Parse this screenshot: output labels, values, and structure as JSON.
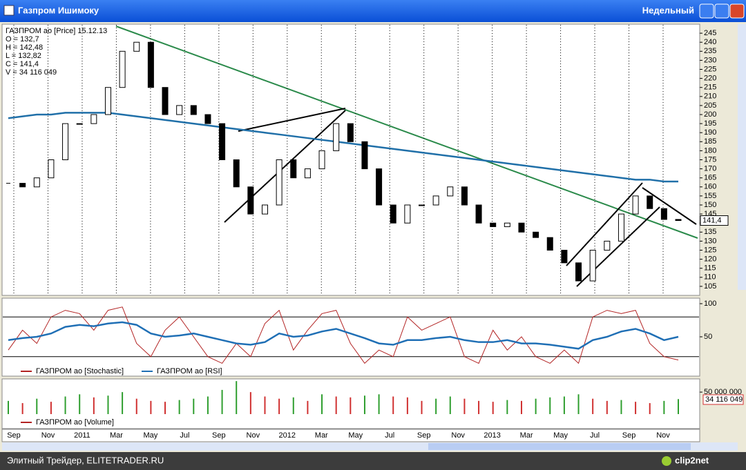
{
  "window": {
    "title": "Газпром Ишимоку",
    "period": "Недельный"
  },
  "x_labels": [
    "Sep",
    "Nov",
    "2011",
    "Mar",
    "May",
    "Jul",
    "Sep",
    "Nov",
    "2012",
    "Mar",
    "May",
    "Jul",
    "Sep",
    "Nov",
    "2013",
    "Mar",
    "May",
    "Jul",
    "Sep",
    "Nov"
  ],
  "footer": {
    "text": "Элитный Трейдер, ELITETRADER.RU",
    "logo": "clip2net"
  },
  "chart_data": [
    {
      "type": "candlestick",
      "info": [
        "ГАЗПРОМ ао [Price] 15.12.13",
        "O = 132,7",
        "H = 142,48",
        "L = 132,82",
        "C = 141,4",
        "V = 34 116 049"
      ],
      "last_label": "141,4",
      "close": [
        162,
        160,
        165,
        175,
        195,
        195,
        200,
        215,
        235,
        240,
        215,
        200,
        205,
        200,
        195,
        175,
        160,
        145,
        150,
        175,
        165,
        170,
        180,
        195,
        185,
        170,
        150,
        140,
        150,
        150,
        155,
        160,
        150,
        140,
        138,
        140,
        135,
        132,
        125,
        118,
        108,
        125,
        130,
        145,
        155,
        148,
        142,
        141.4
      ],
      "ma": [
        198,
        199,
        200,
        200,
        201,
        201,
        201,
        201,
        200,
        199,
        198,
        197,
        196,
        195,
        194,
        193,
        192,
        191,
        190,
        189,
        188,
        187,
        186,
        185,
        184,
        183,
        182,
        181,
        180,
        179,
        178,
        177,
        176,
        175,
        174,
        173,
        172,
        171,
        170,
        169,
        168,
        167,
        166,
        165,
        164,
        164,
        163,
        163
      ],
      "ma_color": "#1f6fa8",
      "ylim": [
        100,
        250
      ],
      "yticks": [
        105,
        110,
        115,
        120,
        125,
        130,
        135,
        140,
        145,
        150,
        155,
        160,
        165,
        170,
        175,
        180,
        185,
        190,
        195,
        200,
        205,
        210,
        215,
        220,
        225,
        230,
        235,
        240,
        245
      ]
    },
    {
      "type": "line",
      "legend": [
        "ГАЗПРОМ ао [Stochastic]",
        "ГАЗПРОМ ао [RSI]"
      ],
      "series": [
        {
          "name": "ГАЗПРОМ ао [Stochastic]",
          "color": "#b22222",
          "values": [
            30,
            60,
            40,
            80,
            90,
            85,
            60,
            90,
            95,
            40,
            20,
            60,
            80,
            50,
            20,
            10,
            40,
            20,
            70,
            90,
            30,
            60,
            85,
            90,
            40,
            10,
            30,
            20,
            80,
            60,
            70,
            80,
            20,
            10,
            60,
            30,
            50,
            20,
            10,
            30,
            10,
            80,
            90,
            85,
            90,
            40,
            20,
            15
          ]
        },
        {
          "name": "ГАЗПРОМ ао [RSI]",
          "color": "#1f6fb5",
          "values": [
            45,
            48,
            50,
            55,
            65,
            68,
            66,
            70,
            72,
            68,
            55,
            50,
            52,
            55,
            50,
            45,
            40,
            38,
            42,
            55,
            50,
            52,
            58,
            62,
            55,
            48,
            40,
            38,
            45,
            45,
            48,
            50,
            45,
            42,
            42,
            45,
            40,
            40,
            38,
            35,
            32,
            45,
            50,
            58,
            62,
            55,
            45,
            50
          ]
        }
      ],
      "levels": [
        80,
        20
      ],
      "ylim": [
        0,
        100
      ],
      "yticks": [
        50,
        100
      ]
    },
    {
      "type": "bar",
      "name": "ГАЗПРОМ ао [Volume]",
      "color": "#2e9e2e",
      "last_label": "34 116 049",
      "values": [
        30000000,
        25000000,
        35000000,
        28000000,
        40000000,
        45000000,
        38000000,
        42000000,
        50000000,
        35000000,
        30000000,
        28000000,
        32000000,
        35000000,
        40000000,
        55000000,
        75000000,
        50000000,
        40000000,
        35000000,
        38000000,
        30000000,
        45000000,
        40000000,
        38000000,
        42000000,
        45000000,
        40000000,
        38000000,
        30000000,
        35000000,
        40000000,
        35000000,
        30000000,
        28000000,
        32000000,
        30000000,
        35000000,
        38000000,
        40000000,
        45000000,
        35000000,
        30000000,
        32000000,
        28000000,
        25000000,
        30000000,
        34116049
      ],
      "ylim": [
        0,
        80000000
      ],
      "yticks": [
        {
          "value": 50000000,
          "label": "50 000 000"
        }
      ]
    }
  ]
}
